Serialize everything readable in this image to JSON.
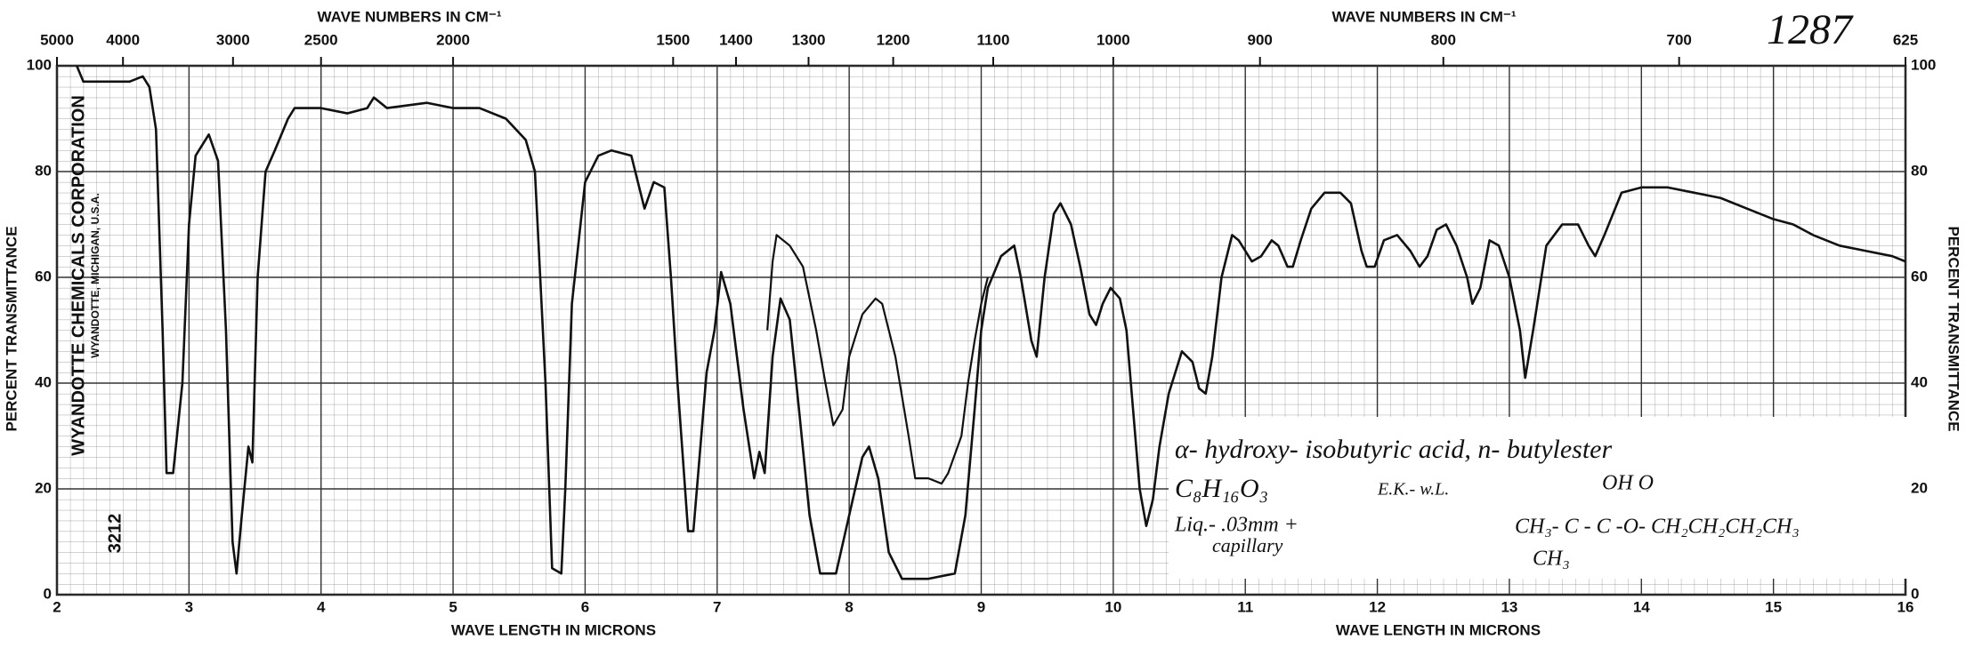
{
  "chart_data": {
    "type": "line",
    "number": "1287",
    "x2labels": [
      "WAVE NUMBERS IN CM⁻¹",
      "WAVE NUMBERS IN CM⁻¹"
    ],
    "xlabels": [
      "WAVE LENGTH IN MICRONS",
      "WAVE LENGTH IN MICRONS"
    ],
    "ylabels": [
      "PERCENT TRANSMITTANCE",
      "PERCENT TRANSMITTANCE"
    ],
    "stamp": [
      "WYANDOTTE CHEMICALS CORPORATION",
      "WYANDOTTE, MICHIGAN, U.S.A.",
      "3212"
    ],
    "xlim": [
      2,
      16
    ],
    "xticks": [
      2,
      3,
      4,
      5,
      6,
      7,
      8,
      9,
      10,
      11,
      12,
      13,
      14,
      15,
      16
    ],
    "x2ticks": [
      5000,
      4000,
      3000,
      2500,
      2000,
      1500,
      1400,
      1300,
      1200,
      1100,
      1000,
      900,
      800,
      700,
      625
    ],
    "ylim": [
      0,
      100
    ],
    "yticks": [
      0,
      20,
      40,
      60,
      80,
      100
    ],
    "grid": true,
    "series": [
      {
        "color": "#111111",
        "x": [
          2.15,
          2.2,
          2.4,
          2.55,
          2.65,
          2.7,
          2.75,
          2.8,
          2.83,
          2.88,
          2.95,
          3.0,
          3.05,
          3.15,
          3.22,
          3.28,
          3.33,
          3.36,
          3.4,
          3.45,
          3.48,
          3.52,
          3.58,
          3.65,
          3.75,
          3.8,
          4.0,
          4.2,
          4.35,
          4.4,
          4.5,
          4.8,
          5.0,
          5.2,
          5.4,
          5.55,
          5.62,
          5.7,
          5.75,
          5.82,
          5.85,
          5.9,
          6.0,
          6.1,
          6.2,
          6.35,
          6.45,
          6.52,
          6.6,
          6.65,
          6.7,
          6.78,
          6.82,
          6.88,
          6.92,
          6.98,
          7.03,
          7.1,
          7.2,
          7.28,
          7.32,
          7.36,
          7.42,
          7.48,
          7.55,
          7.62,
          7.7,
          7.78,
          7.9,
          8.0,
          8.1,
          8.15,
          8.22,
          8.3,
          8.4,
          8.6,
          8.8,
          8.88,
          8.95,
          9.0,
          9.05,
          9.15,
          9.25,
          9.3,
          9.38,
          9.42,
          9.48,
          9.55,
          9.6,
          9.68,
          9.75,
          9.82,
          9.87,
          9.92,
          9.98,
          10.05,
          10.1,
          10.15,
          10.2,
          10.25,
          10.3,
          10.35,
          10.42,
          10.52,
          10.6,
          10.65,
          10.7,
          10.75,
          10.82,
          10.9,
          10.95,
          11.05,
          11.12,
          11.2,
          11.25,
          11.32,
          11.36,
          11.42,
          11.5,
          11.6,
          11.72,
          11.8,
          11.88,
          11.92,
          11.98,
          12.05,
          12.15,
          12.25,
          12.32,
          12.38,
          12.45,
          12.52,
          12.6,
          12.68,
          12.72,
          12.78,
          12.85,
          12.92,
          13.0,
          13.08,
          13.12,
          13.18,
          13.28,
          13.4,
          13.52,
          13.6,
          13.65,
          13.72,
          13.85,
          14.0,
          14.2,
          14.4,
          14.6,
          14.8,
          15.0,
          15.15,
          15.3,
          15.5,
          15.7,
          15.9,
          16.0
        ],
        "values": [
          100,
          97,
          97,
          97,
          98,
          96,
          88,
          50,
          23,
          23,
          40,
          70,
          83,
          87,
          82,
          50,
          10,
          4,
          15,
          28,
          25,
          60,
          80,
          84,
          90,
          92,
          92,
          91,
          92,
          94,
          92,
          93,
          92,
          92,
          90,
          86,
          80,
          40,
          5,
          4,
          20,
          55,
          78,
          83,
          84,
          83,
          73,
          78,
          77,
          60,
          40,
          12,
          12,
          30,
          42,
          50,
          61,
          55,
          35,
          22,
          27,
          23,
          45,
          56,
          52,
          35,
          15,
          4,
          4,
          15,
          26,
          28,
          22,
          8,
          3,
          3,
          4,
          15,
          35,
          50,
          58,
          64,
          66,
          60,
          48,
          45,
          60,
          72,
          74,
          70,
          62,
          53,
          51,
          55,
          58,
          56,
          50,
          35,
          20,
          13,
          18,
          28,
          38,
          46,
          44,
          39,
          38,
          45,
          60,
          68,
          67,
          63,
          64,
          67,
          66,
          62,
          62,
          67,
          73,
          76,
          76,
          74,
          65,
          62,
          62,
          67,
          68,
          65,
          62,
          64,
          69,
          70,
          66,
          60,
          55,
          58,
          67,
          66,
          60,
          50,
          41,
          50,
          66,
          70,
          70,
          66,
          64,
          68,
          76,
          77,
          77,
          76,
          75,
          73,
          71,
          70,
          68,
          66,
          65,
          64,
          63
        ]
      },
      {
        "color": "#111111",
        "x": [
          7.38,
          7.42,
          7.45,
          7.55,
          7.65,
          7.75,
          7.82,
          7.88,
          7.95,
          8.0,
          8.1,
          8.2,
          8.25,
          8.35,
          8.45,
          8.5,
          8.6,
          8.7,
          8.75,
          8.85,
          8.9,
          8.95,
          9.0,
          9.05
        ],
        "values": [
          50,
          63,
          68,
          66,
          62,
          50,
          40,
          32,
          35,
          45,
          53,
          56,
          55,
          45,
          30,
          22,
          22,
          21,
          23,
          30,
          40,
          48,
          55,
          60
        ]
      }
    ],
    "annotations": [
      "α- hydroxy- isobutyric acid, n- butylester",
      "C₈H₁₆O₃",
      "E.K.- w.L.",
      "Liq.- .03mm +",
      "capillary",
      "OH   O",
      "CH₃- C - C -O- CH₂CH₂CH₂CH₃",
      "CH₃"
    ]
  }
}
